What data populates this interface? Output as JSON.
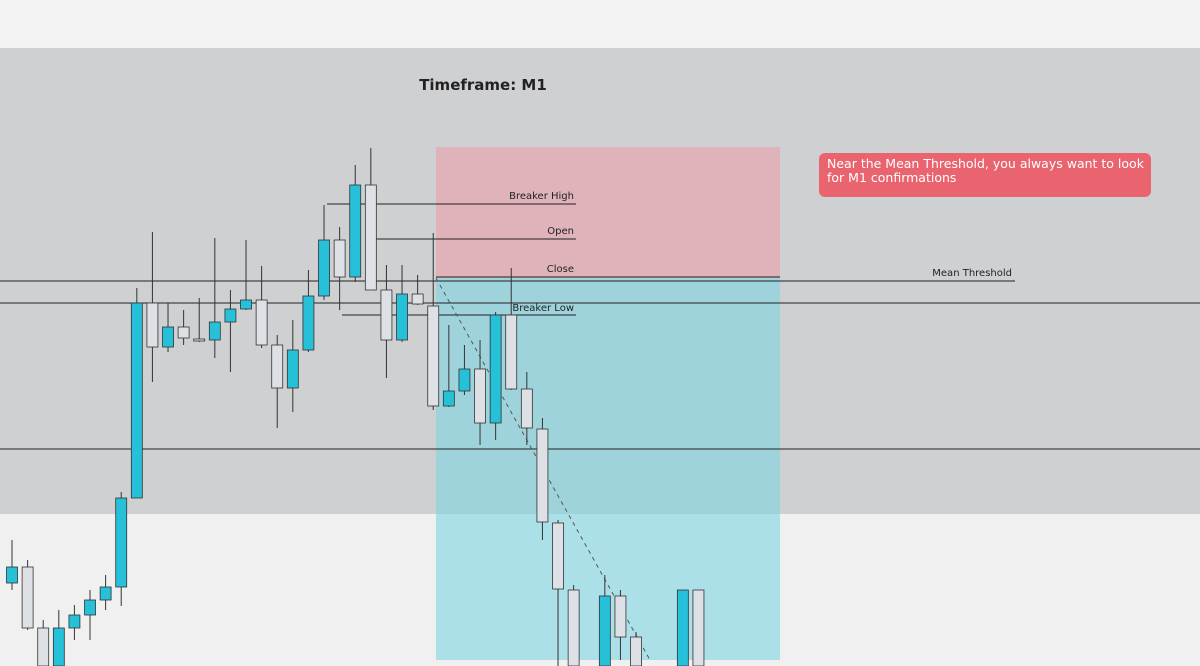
{
  "chart_data": {
    "type": "candlestick",
    "title": "Timeframe: M1",
    "x": [
      0,
      1,
      2,
      3,
      4,
      5,
      6,
      7,
      8,
      9,
      10,
      11,
      12,
      13,
      14,
      15,
      16,
      17,
      18,
      19,
      20,
      21,
      22,
      23,
      24,
      25,
      26,
      27,
      28,
      29,
      30,
      31,
      32,
      33,
      34,
      35,
      36,
      38,
      39,
      40,
      43,
      44
    ],
    "open": [
      83,
      99,
      38,
      0,
      38,
      51,
      66,
      79,
      168,
      363,
      319,
      339,
      327,
      326,
      344,
      357,
      366,
      321,
      278,
      316,
      370,
      426,
      389,
      481,
      376,
      326,
      372,
      360,
      260,
      275,
      297,
      243,
      351,
      277,
      237,
      143,
      76,
      0,
      70,
      29,
      0,
      76
    ],
    "high": [
      126,
      106,
      46,
      56,
      61,
      76,
      91,
      174,
      378,
      434,
      363,
      356,
      368,
      428,
      376,
      426,
      400,
      331,
      346,
      396,
      461,
      439,
      501,
      518,
      401,
      401,
      391,
      433,
      341,
      321,
      326,
      354,
      398,
      294,
      248,
      146,
      81,
      91,
      76,
      34,
      76,
      76
    ],
    "low": [
      76,
      36,
      0,
      0,
      26,
      26,
      56,
      60,
      168,
      284,
      314,
      321,
      324,
      308,
      294,
      356,
      318,
      238,
      254,
      314,
      366,
      356,
      384,
      376,
      288,
      324,
      361,
      256,
      259,
      271,
      221,
      226,
      276,
      221,
      126,
      0,
      0,
      0,
      6,
      0,
      0,
      0
    ],
    "close": [
      99,
      38,
      0,
      38,
      51,
      66,
      79,
      168,
      363,
      319,
      339,
      328,
      325,
      344,
      357,
      366,
      321,
      278,
      316,
      370,
      426,
      389,
      481,
      376,
      326,
      372,
      362,
      260,
      275,
      297,
      243,
      351,
      277,
      238,
      144,
      77,
      0,
      70,
      29,
      0,
      76,
      0
    ],
    "up_color": "#26c0d8",
    "down_color": "#dde0e4",
    "xlim": [
      -0.77,
      76.15
    ],
    "ylim": [
      0,
      666
    ],
    "annotations": [
      "Breaker High",
      "Open",
      "Close",
      "Breaker Low",
      "Mean Threshold"
    ],
    "callout": "Near the Mean Threshold, you always want to look for M1 confirmations"
  }
}
